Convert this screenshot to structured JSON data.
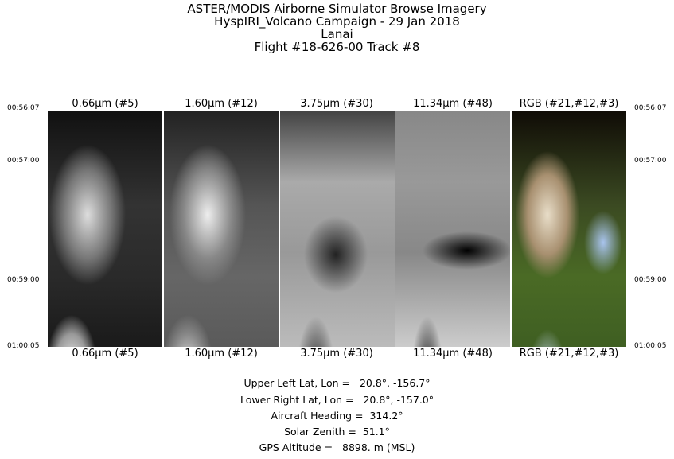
{
  "title": {
    "line1": "ASTER/MODIS Airborne Simulator Browse Imagery",
    "line2": "HyspIRI_Volcano Campaign - 29 Jan 2018",
    "line3": "Lanai",
    "line4": "Flight #18-626-00 Track #8"
  },
  "panels": [
    {
      "label": "0.66μm (#5)",
      "style": "visible-gray"
    },
    {
      "label": "1.60μm (#12)",
      "style": "swir-gray"
    },
    {
      "label": "3.75μm (#30)",
      "style": "mwir-gray"
    },
    {
      "label": "11.34μm (#48)",
      "style": "tir-gray"
    },
    {
      "label": "RGB (#21,#12,#3)",
      "style": "false-color"
    }
  ],
  "times": [
    "00:56:07",
    "00:57:00",
    "00:59:00",
    "01:00:05"
  ],
  "info": [
    {
      "label": "Upper Left Lat, Lon =",
      "value": "20.8°, -156.7°"
    },
    {
      "label": "Lower Right Lat, Lon =",
      "value": "20.8°, -157.0°"
    },
    {
      "label": "Aircraft Heading =",
      "value": "314.2°"
    },
    {
      "label": "Solar Zenith =",
      "value": "51.1°"
    },
    {
      "label": "GPS Altitude =",
      "value": "8898. m (MSL)"
    }
  ]
}
